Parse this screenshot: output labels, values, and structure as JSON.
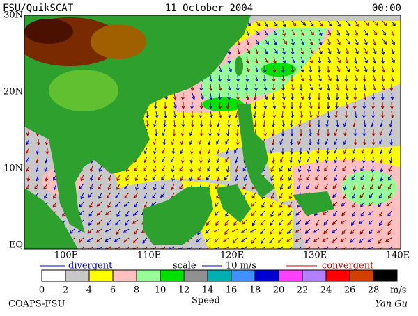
{
  "header": {
    "title": "FSU/QuikSCAT",
    "date": "11 October 2004",
    "time": "00:00"
  },
  "map": {
    "lat_labels": [
      "30N",
      "20N",
      "10N",
      "EQ"
    ],
    "lon_labels": [
      "100E",
      "110E",
      "120E",
      "130E",
      "140E"
    ]
  },
  "legend": {
    "divergent": "divergent",
    "scale": "scale",
    "scale_value": "10 m/s",
    "convergent": "convergent",
    "speed_ticks": [
      0,
      2,
      4,
      6,
      8,
      10,
      12,
      14,
      16,
      18,
      20,
      22,
      24,
      26,
      28
    ],
    "speed_colors": [
      "#ffffff",
      "#c8c8c8",
      "#ffff00",
      "#ffc0c0",
      "#98ff98",
      "#00e000",
      "#909090",
      "#00b0b0",
      "#4090ff",
      "#0000d0",
      "#ff40ff",
      "#b080ff",
      "#ff0000",
      "#d04000",
      "#000000"
    ],
    "unit": "m/s",
    "speed_label": "Speed"
  },
  "footer": {
    "credit": "COAPS-FSU",
    "author": "Yan Gu"
  }
}
